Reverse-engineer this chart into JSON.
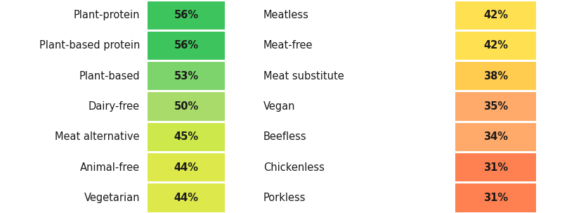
{
  "left_labels": [
    "Plant-protein",
    "Plant-based protein",
    "Plant-based",
    "Dairy-free",
    "Meat alternative",
    "Animal-free",
    "Vegetarian"
  ],
  "left_values": [
    "56%",
    "56%",
    "53%",
    "50%",
    "45%",
    "44%",
    "44%"
  ],
  "left_colors": [
    "#3ec45c",
    "#3ec45c",
    "#7dd46c",
    "#a8db6a",
    "#cce84a",
    "#dde84a",
    "#dde84a"
  ],
  "right_labels": [
    "Meatless",
    "Meat-free",
    "Meat substitute",
    "Vegan",
    "Beefless",
    "Chickenless",
    "Porkless"
  ],
  "right_values": [
    "42%",
    "42%",
    "38%",
    "35%",
    "34%",
    "31%",
    "31%"
  ],
  "right_colors": [
    "#ffe050",
    "#ffe050",
    "#ffcc50",
    "#ffaa6a",
    "#ffaa6a",
    "#ff8050",
    "#ff8050"
  ],
  "bg_color": "#ffffff",
  "text_color": "#1a1a1a",
  "label_fontsize": 10.5,
  "value_fontsize": 10.5
}
